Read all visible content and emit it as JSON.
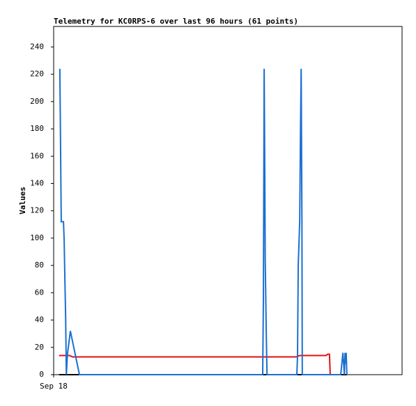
{
  "chart_data": {
    "type": "line",
    "title": "Telemetry for KC0RPS-6 over last 96 hours (61 points)",
    "y_label": "Values",
    "xlim": [
      0,
      96
    ],
    "xticks": [
      {
        "value": 0,
        "label": "Sep 18"
      }
    ],
    "ylim": [
      0,
      255
    ],
    "yticks": [
      0,
      20,
      40,
      60,
      80,
      100,
      120,
      140,
      160,
      180,
      200,
      220,
      240
    ],
    "series": [
      {
        "color": "#000000",
        "x": [
          1.5,
          80.8
        ],
        "values": [
          0,
          0
        ]
      },
      {
        "color": "#e01010",
        "x": [
          1.5,
          4.4,
          5.2,
          66.8,
          67.8,
          75.1,
          75.5,
          76.0,
          76.2
        ],
        "values": [
          14,
          14,
          13,
          13,
          14,
          14,
          15,
          15,
          0
        ]
      },
      {
        "color": "#1a6fd0",
        "x": [
          1.7,
          1.9,
          2.1,
          2.7,
          2.9,
          3.1,
          3.3,
          3.5,
          3.8,
          4.6,
          7.1,
          57.6,
          57.8,
          58.0,
          58.2,
          58.3,
          58.6,
          58.8,
          67.0,
          67.2,
          67.4,
          67.8,
          68.0,
          68.2,
          68.4,
          68.5,
          79.1,
          79.7,
          80.1,
          80.3,
          80.4,
          80.6,
          80.8
        ],
        "values": [
          224,
          168,
          112,
          112,
          98,
          70,
          42,
          0,
          15,
          32,
          0,
          0,
          56,
          224,
          140,
          84,
          28,
          0,
          0,
          14,
          80,
          112,
          176,
          224,
          112,
          0,
          0,
          16,
          0,
          16,
          8,
          16,
          0
        ]
      }
    ]
  }
}
